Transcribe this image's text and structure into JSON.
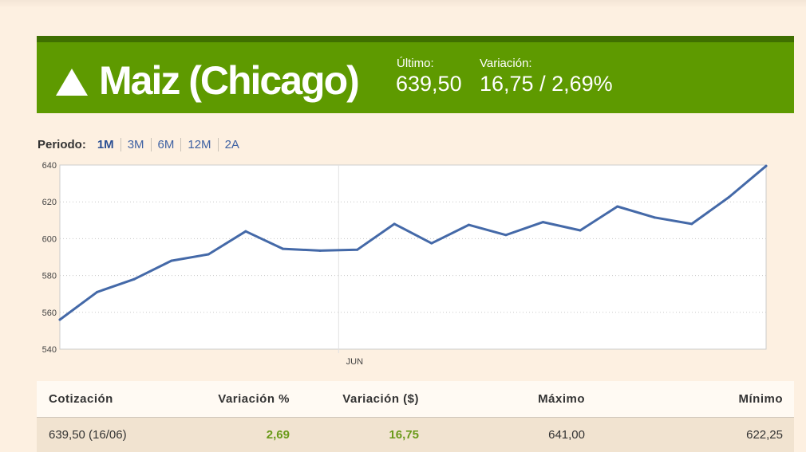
{
  "header": {
    "arrow_icon": "up-triangle-icon",
    "title": "Maiz (Chicago)",
    "ultimo_label": "Último:",
    "ultimo_value": "639,50",
    "variacion_label": "Variación:",
    "variacion_value": "16,75 / 2,69%",
    "bg_color": "#5e9a00"
  },
  "period": {
    "label": "Periodo:",
    "options": [
      "1M",
      "3M",
      "6M",
      "12M",
      "2A"
    ],
    "selected": "1M"
  },
  "chart_data": {
    "type": "line",
    "title": "",
    "xlabel": "",
    "ylabel": "",
    "ylim": [
      540,
      640
    ],
    "yticks": [
      540,
      560,
      580,
      600,
      620,
      640
    ],
    "x_tick_labels": [
      {
        "label": "JUN",
        "index": 7.5
      }
    ],
    "grid": "horizontal dotted",
    "series": [
      {
        "color": "#4469a8",
        "values": [
          556,
          571,
          578,
          588,
          591.5,
          604,
          594.5,
          593.5,
          594,
          608,
          597.5,
          607.5,
          602,
          609,
          604.5,
          617.5,
          611.5,
          608,
          622.5,
          639.5
        ]
      }
    ]
  },
  "table": {
    "headers": [
      "Cotización",
      "Variación %",
      "Variación ($)",
      "Máximo",
      "Mínimo"
    ],
    "row": [
      "639,50 (16/06)",
      "2,69",
      "16,75",
      "641,00",
      "622,25"
    ]
  }
}
